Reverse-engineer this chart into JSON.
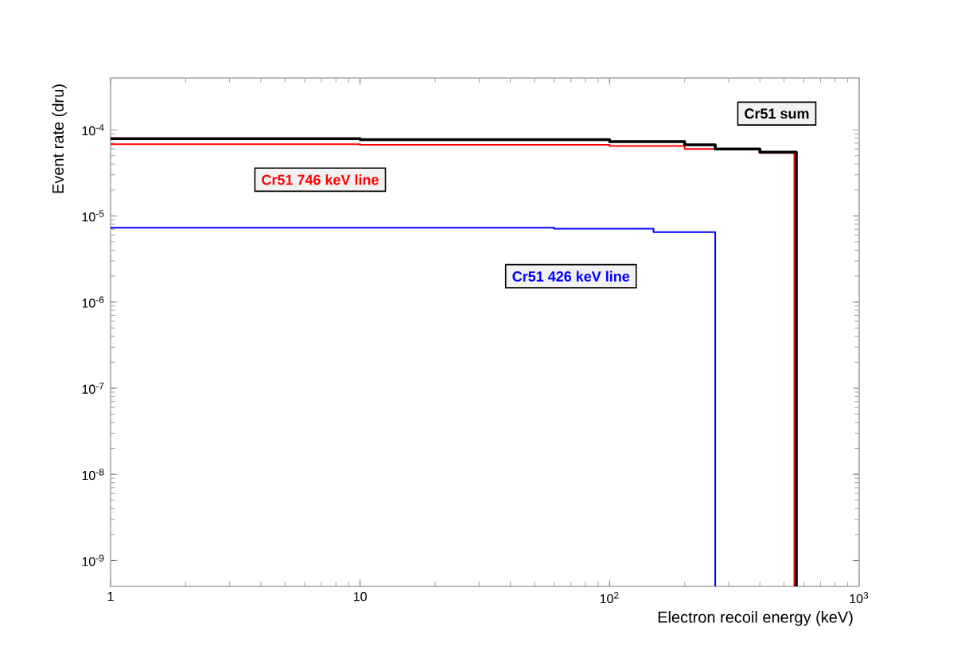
{
  "chart_data": {
    "type": "step",
    "xlabel": "Electron recoil energy (keV)",
    "ylabel": "Event rate (dru)",
    "log": "xy",
    "xlim": [
      1,
      1000
    ],
    "ylim": [
      5e-10,
      0.0004
    ],
    "xticks": [
      1,
      10,
      {
        "value": 100,
        "label": "10$^{2}$"
      },
      {
        "value": 1000,
        "label": "10$^{3}$"
      }
    ],
    "yticks": [
      {
        "value": 1e-09,
        "label": "10$^{-9}$"
      },
      {
        "value": 1e-08,
        "label": "10$^{-8}$"
      },
      {
        "value": 1e-07,
        "label": "10$^{-7}$"
      },
      {
        "value": 1e-06,
        "label": "10$^{-6}$"
      },
      {
        "value": 1e-05,
        "label": "10$^{-5}$"
      },
      {
        "value": 0.0001,
        "label": "10$^{-4}$"
      }
    ],
    "series": [
      {
        "name": "Cr51 746 keV line",
        "color": "#ff0000",
        "x": [
          1,
          10,
          100,
          200,
          400,
          550
        ],
        "values": [
          6.8e-05,
          6.7e-05,
          6.5e-05,
          6e-05,
          5.4e-05,
          5e-10
        ]
      },
      {
        "name": "Cr51 426 keV line",
        "color": "#0000ff",
        "x": [
          1,
          10,
          60,
          150,
          265
        ],
        "values": [
          7.3e-06,
          7.3e-06,
          7.1e-06,
          6.5e-06,
          5e-10
        ]
      },
      {
        "name": "Cr51 sum",
        "color": "#000000",
        "x": [
          1,
          10,
          100,
          200,
          265,
          400,
          560
        ],
        "values": [
          7.9e-05,
          7.7e-05,
          7.3e-05,
          6.7e-05,
          6e-05,
          5.5e-05,
          5e-10
        ]
      }
    ]
  }
}
